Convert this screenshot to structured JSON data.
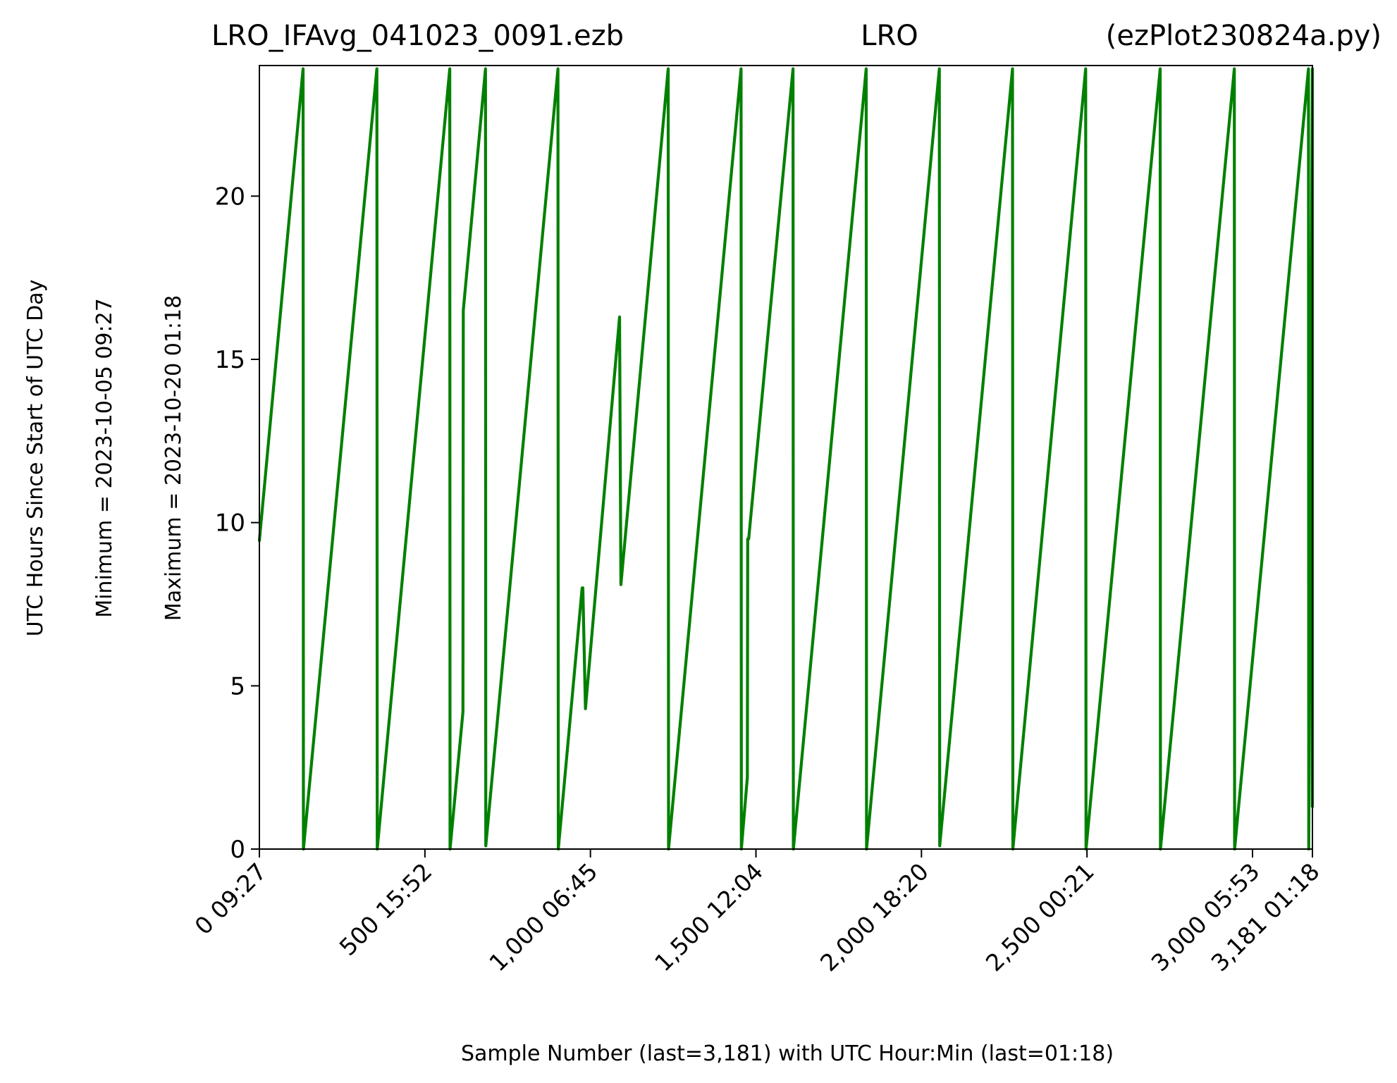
{
  "chart_data": {
    "type": "line",
    "title_left": "LRO_IFAvg_041023_0091.ezb",
    "title_center": "LRO",
    "title_right": "(ezPlot230824a.py)",
    "xlabel": "Sample Number (last=3,181) with UTC Hour:Min (last=01:18)",
    "ylabel": "UTC Hours Since Start of UTC Day",
    "ylabel_min": "Minimum = 2023-10-05   09:27",
    "ylabel_max": "Maximum = 2023-10-20   01:18",
    "xlim": [
      0,
      3181
    ],
    "ylim": [
      0,
      24
    ],
    "grid": false,
    "line_color": "#008000",
    "x_ticks": [
      {
        "value": 0,
        "label": "0  09:27"
      },
      {
        "value": 500,
        "label": "500  15:52"
      },
      {
        "value": 1000,
        "label": "1,000  06:45"
      },
      {
        "value": 1500,
        "label": "1,500  12:04"
      },
      {
        "value": 2000,
        "label": "2,000  18:20"
      },
      {
        "value": 2500,
        "label": "2,500  00:21"
      },
      {
        "value": 3000,
        "label": "3,000  05:53"
      },
      {
        "value": 3181,
        "label": "3,181  01:18"
      }
    ],
    "y_ticks": [
      {
        "value": 0,
        "label": "0"
      },
      {
        "value": 5,
        "label": "5"
      },
      {
        "value": 10,
        "label": "10"
      },
      {
        "value": 15,
        "label": "15"
      },
      {
        "value": 20,
        "label": "20"
      }
    ],
    "series": [
      {
        "x": [
          0,
          132,
          132,
          133,
          355,
          355,
          356,
          575,
          575,
          576,
          615,
          616,
          683,
          683,
          684,
          902,
          902,
          903,
          975,
          977,
          985,
          1088,
          1092,
          1235,
          1235,
          1236,
          1455,
          1455,
          1456,
          1474,
          1475,
          1478,
          1612,
          1612,
          1613,
          1833,
          1833,
          1834,
          2054,
          2054,
          2055,
          2275,
          2275,
          2276,
          2496,
          2496,
          2497,
          2721,
          2721,
          2722,
          2945,
          2945,
          2946,
          3169,
          3169,
          3170,
          3181,
          3181
        ],
        "y": [
          9.45,
          23.9,
          23.9,
          0.0,
          23.9,
          23.9,
          0.0,
          23.9,
          23.9,
          0.0,
          4.2,
          16.5,
          23.9,
          23.9,
          0.1,
          23.9,
          23.9,
          0.0,
          8.0,
          8.0,
          4.3,
          16.3,
          8.1,
          23.9,
          23.9,
          0.0,
          23.9,
          23.9,
          0.0,
          2.2,
          9.5,
          9.5,
          23.9,
          23.9,
          0.0,
          23.9,
          23.9,
          0.0,
          23.9,
          23.9,
          0.1,
          23.9,
          23.9,
          0.0,
          23.9,
          23.9,
          0.0,
          23.9,
          23.9,
          0.0,
          23.9,
          23.9,
          0.0,
          23.9,
          23.9,
          0.0,
          23.9,
          1.3
        ]
      }
    ]
  }
}
